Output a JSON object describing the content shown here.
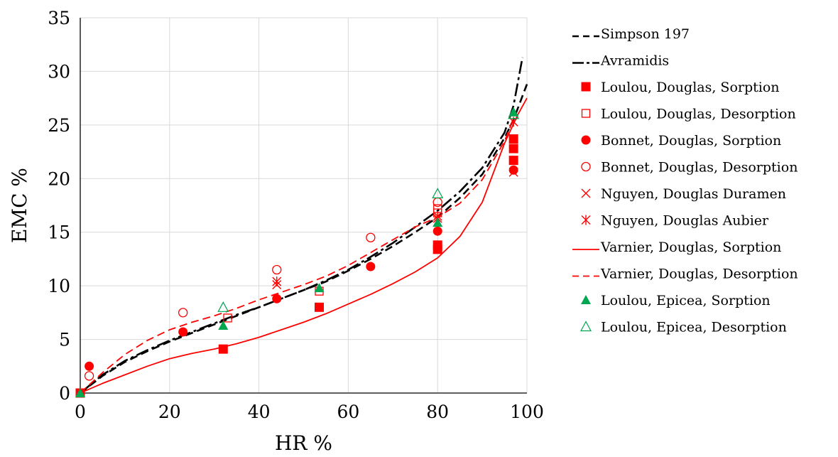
{
  "chart_data": {
    "type": "scatter",
    "title": "",
    "xlabel": "HR %",
    "ylabel": "EMC %",
    "xlim": [
      0,
      100
    ],
    "ylim": [
      0,
      35
    ],
    "x_ticks": [
      "0",
      "20",
      "40",
      "60",
      "80",
      "100"
    ],
    "y_ticks": [
      "0",
      "5",
      "10",
      "15",
      "20",
      "25",
      "30",
      "35"
    ],
    "grid": true,
    "legend_position": "right",
    "colors": {
      "red": "#ff0000",
      "green": "#00a650",
      "black": "#000000"
    },
    "series": [
      {
        "name": "Simpson 197",
        "kind": "line",
        "style": "dash",
        "color": "#000000",
        "points": [
          [
            0,
            0
          ],
          [
            5,
            1.6
          ],
          [
            10,
            2.9
          ],
          [
            15,
            3.9
          ],
          [
            20,
            4.8
          ],
          [
            25,
            5.6
          ],
          [
            30,
            6.4
          ],
          [
            35,
            7.2
          ],
          [
            40,
            8.0
          ],
          [
            45,
            8.8
          ],
          [
            50,
            9.6
          ],
          [
            55,
            10.4
          ],
          [
            60,
            11.4
          ],
          [
            65,
            12.5
          ],
          [
            70,
            13.7
          ],
          [
            75,
            15.0
          ],
          [
            80,
            16.4
          ],
          [
            85,
            18.2
          ],
          [
            90,
            20.4
          ],
          [
            95,
            23.8
          ],
          [
            97,
            25.5
          ],
          [
            100,
            28.8
          ]
        ]
      },
      {
        "name": "Avramidis",
        "kind": "line",
        "style": "dashdot",
        "color": "#000000",
        "points": [
          [
            0,
            0
          ],
          [
            5,
            1.7
          ],
          [
            10,
            3.0
          ],
          [
            15,
            4.0
          ],
          [
            20,
            4.9
          ],
          [
            25,
            5.7
          ],
          [
            30,
            6.5
          ],
          [
            35,
            7.3
          ],
          [
            40,
            8.0
          ],
          [
            45,
            8.8
          ],
          [
            50,
            9.6
          ],
          [
            55,
            10.5
          ],
          [
            60,
            11.5
          ],
          [
            65,
            12.7
          ],
          [
            70,
            14.0
          ],
          [
            75,
            15.5
          ],
          [
            80,
            17.0
          ],
          [
            85,
            18.8
          ],
          [
            90,
            21.0
          ],
          [
            95,
            24.3
          ],
          [
            97,
            26.8
          ],
          [
            99,
            31.3
          ]
        ]
      },
      {
        "name": "Loulou, Douglas, Sorption",
        "kind": "marker",
        "marker": "square-filled",
        "color": "#ff0000",
        "points": [
          [
            0,
            0
          ],
          [
            32,
            4.1
          ],
          [
            53.5,
            8.0
          ],
          [
            80,
            13.4
          ],
          [
            80,
            13.8
          ],
          [
            97,
            21.7
          ],
          [
            97,
            22.8
          ],
          [
            97,
            23.7
          ]
        ]
      },
      {
        "name": "Loulou, Douglas, Desorption",
        "kind": "marker",
        "marker": "square-open",
        "color": "#ff0000",
        "points": [
          [
            33,
            7.0
          ],
          [
            53.5,
            9.5
          ],
          [
            80,
            16.8
          ],
          [
            80,
            17.2
          ]
        ]
      },
      {
        "name": "Bonnet, Douglas, Sorption",
        "kind": "marker",
        "marker": "circle-filled",
        "color": "#ff0000",
        "points": [
          [
            2,
            2.5
          ],
          [
            23,
            5.7
          ],
          [
            44,
            8.8
          ],
          [
            65,
            11.8
          ],
          [
            80,
            15.1
          ],
          [
            97,
            20.8
          ]
        ]
      },
      {
        "name": "Bonnet, Douglas, Desorption",
        "kind": "marker",
        "marker": "circle-open",
        "color": "#ff0000",
        "points": [
          [
            2,
            1.6
          ],
          [
            23,
            7.5
          ],
          [
            44,
            11.5
          ],
          [
            65,
            14.5
          ],
          [
            80,
            17.8
          ]
        ]
      },
      {
        "name": "Nguyen, Douglas Duramen",
        "kind": "marker",
        "marker": "x",
        "color": "#ff0000",
        "points": [
          [
            44,
            10.1
          ],
          [
            80,
            16.3
          ],
          [
            97,
            20.6
          ]
        ]
      },
      {
        "name": "Nguyen, Douglas Aubier",
        "kind": "marker",
        "marker": "asterisk",
        "color": "#ff0000",
        "points": [
          [
            44,
            10.4
          ],
          [
            80,
            16.5
          ],
          [
            97,
            25.3
          ]
        ]
      },
      {
        "name": "Varnier, Douglas, Sorption",
        "kind": "line",
        "style": "solid",
        "color": "#ff0000",
        "points": [
          [
            0,
            0
          ],
          [
            5,
            0.9
          ],
          [
            10,
            1.7
          ],
          [
            15,
            2.5
          ],
          [
            20,
            3.2
          ],
          [
            25,
            3.7
          ],
          [
            30,
            4.1
          ],
          [
            35,
            4.6
          ],
          [
            40,
            5.2
          ],
          [
            45,
            5.9
          ],
          [
            50,
            6.6
          ],
          [
            55,
            7.4
          ],
          [
            60,
            8.3
          ],
          [
            65,
            9.2
          ],
          [
            70,
            10.2
          ],
          [
            75,
            11.3
          ],
          [
            80,
            12.6
          ],
          [
            85,
            14.6
          ],
          [
            90,
            17.8
          ],
          [
            95,
            23.3
          ],
          [
            98,
            26.0
          ],
          [
            100,
            27.5
          ]
        ]
      },
      {
        "name": "Varnier, Douglas, Desorption",
        "kind": "line",
        "style": "dash",
        "color": "#ff0000",
        "points": [
          [
            0,
            0
          ],
          [
            5,
            1.9
          ],
          [
            10,
            3.6
          ],
          [
            15,
            4.9
          ],
          [
            20,
            5.9
          ],
          [
            25,
            6.6
          ],
          [
            30,
            7.2
          ],
          [
            35,
            7.9
          ],
          [
            40,
            8.7
          ],
          [
            45,
            9.4
          ],
          [
            50,
            10.1
          ],
          [
            55,
            10.9
          ],
          [
            60,
            11.9
          ],
          [
            65,
            13.1
          ],
          [
            70,
            14.3
          ],
          [
            75,
            15.5
          ],
          [
            80,
            16.4
          ],
          [
            85,
            17.7
          ],
          [
            90,
            19.9
          ],
          [
            95,
            23.5
          ],
          [
            97,
            25.6
          ]
        ]
      },
      {
        "name": "Loulou, Epicea, Sorption",
        "kind": "marker",
        "marker": "triangle-filled",
        "color": "#00a650",
        "points": [
          [
            0,
            0
          ],
          [
            32,
            6.3
          ],
          [
            53.5,
            9.8
          ],
          [
            80,
            15.9
          ],
          [
            97,
            26.2
          ]
        ]
      },
      {
        "name": "Loulou, Epicea, Desorption",
        "kind": "marker",
        "marker": "triangle-open",
        "color": "#00a650",
        "points": [
          [
            32,
            8.0
          ],
          [
            80,
            18.6
          ],
          [
            97,
            26.0
          ]
        ]
      }
    ]
  }
}
